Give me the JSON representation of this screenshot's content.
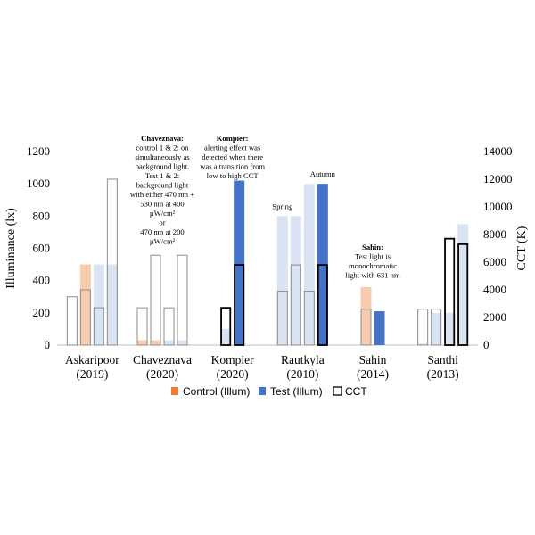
{
  "chart_data": {
    "type": "bar",
    "left_axis": {
      "title": "Illuminance (lx)",
      "min": 0,
      "max": 1200,
      "ticks": [
        0,
        200,
        400,
        600,
        800,
        1000,
        1200
      ]
    },
    "right_axis": {
      "title": "CCT (K)",
      "min": 0,
      "max": 14000,
      "ticks": [
        0,
        2000,
        4000,
        6000,
        8000,
        10000,
        12000,
        14000
      ]
    },
    "legend": {
      "placement": "bottom",
      "entries": [
        {
          "label": "Control (Illum)",
          "color": "#ED7D31"
        },
        {
          "label": "Test (Illum)",
          "color": "#4472C4"
        },
        {
          "label": "CCT",
          "color": "#000000"
        }
      ]
    },
    "groups": [
      {
        "name": "Askaripoor",
        "year": "(2019)",
        "bars": [
          {
            "illum": 0,
            "cct": 3500,
            "illum_color": "#F8CBAD",
            "cct_style": "gray"
          },
          {
            "illum": 500,
            "cct": 4000,
            "illum_color": "#F8CBAD",
            "cct_style": "gray"
          },
          {
            "illum": 500,
            "cct": 2700,
            "illum_color": "#DAE3F3",
            "cct_style": "gray"
          },
          {
            "illum": 500,
            "cct": 12000,
            "illum_color": "#DAE3F3",
            "cct_style": "gray"
          }
        ]
      },
      {
        "name": "Chaveznava",
        "year": "(2020)",
        "bars": [
          {
            "illum": 30,
            "cct": 2700,
            "illum_color": "#F8CBAD",
            "cct_style": "gray"
          },
          {
            "illum": 30,
            "cct": 6500,
            "illum_color": "#F8CBAD",
            "cct_style": "gray"
          },
          {
            "illum": 30,
            "cct": 2700,
            "illum_color": "#DAE3F3",
            "cct_style": "gray"
          },
          {
            "illum": 30,
            "cct": 6500,
            "illum_color": "#DAE3F3",
            "cct_style": "gray"
          }
        ]
      },
      {
        "name": "Kompier",
        "year": "(2020)",
        "bars": [
          {
            "illum": 100,
            "cct": 2700,
            "illum_color": "#DAE3F3",
            "cct_style": "black"
          },
          {
            "illum": 1020,
            "cct": 5800,
            "illum_color": "#4472C4",
            "cct_style": "black"
          }
        ]
      },
      {
        "name": "Rautkyla",
        "year": "(2010)",
        "bars": [
          {
            "illum": 800,
            "cct": 3900,
            "illum_color": "#DAE3F3",
            "cct_style": "gray"
          },
          {
            "illum": 800,
            "cct": 5800,
            "illum_color": "#DAE3F3",
            "cct_style": "gray"
          },
          {
            "illum": 1000,
            "cct": 3900,
            "illum_color": "#DAE3F3",
            "cct_style": "gray"
          },
          {
            "illum": 1000,
            "cct": 5800,
            "illum_color": "#4472C4",
            "cct_style": "black"
          }
        ]
      },
      {
        "name": "Sahin",
        "year": "(2014)",
        "bars": [
          {
            "illum": 360,
            "cct": 2600,
            "illum_color": "#F8CBAD",
            "cct_style": "gray"
          },
          {
            "illum": 210,
            "cct": 0,
            "illum_color": "#4472C4",
            "cct_style": "none"
          }
        ]
      },
      {
        "name": "Santhi",
        "year": "(2013)",
        "bars": [
          {
            "illum": 10,
            "cct": 2600,
            "illum_color": "#DAE3F3",
            "cct_style": "gray"
          },
          {
            "illum": 200,
            "cct": 2600,
            "illum_color": "#DAE3F3",
            "cct_style": "gray"
          },
          {
            "illum": 200,
            "cct": 7700,
            "illum_color": "#DAE3F3",
            "cct_style": "black"
          },
          {
            "illum": 750,
            "cct": 7300,
            "illum_color": "#DAE3F3",
            "cct_style": "black"
          }
        ]
      }
    ],
    "annotations": [
      {
        "group": "Chaveznava",
        "lines": [
          {
            "text": "Chaveznava:",
            "bold": true
          },
          {
            "text": "control 1 & 2: on"
          },
          {
            "text": "simultaneously as"
          },
          {
            "text": "background light."
          },
          {
            "text": "Test 1 & 2:"
          },
          {
            "text": "background light"
          },
          {
            "text": "with either 470 nm +"
          },
          {
            "text": "530 nm at 400"
          },
          {
            "text": "µW/cm²"
          },
          {
            "text": "or"
          },
          {
            "text": "470 nm at 200"
          },
          {
            "text": "µW/cm²"
          }
        ]
      },
      {
        "group": "Kompier",
        "lines": [
          {
            "text": "Kompier:",
            "bold": true
          },
          {
            "text": "alerting effect was"
          },
          {
            "text": "detected when there"
          },
          {
            "text": "was a transition from"
          },
          {
            "text": "low to high CCT"
          }
        ]
      },
      {
        "group": "Rautkyla",
        "lines": [
          {
            "text": "Spring"
          }
        ],
        "bar": 0
      },
      {
        "group": "Rautkyla",
        "lines": [
          {
            "text": "Autumn"
          }
        ],
        "bar": 3
      },
      {
        "group": "Sahin",
        "lines": [
          {
            "text": "Sahin:",
            "bold": true
          },
          {
            "text": "Test light is"
          },
          {
            "text": "monochromatic"
          },
          {
            "text": "light with 631 nm"
          }
        ]
      }
    ]
  }
}
